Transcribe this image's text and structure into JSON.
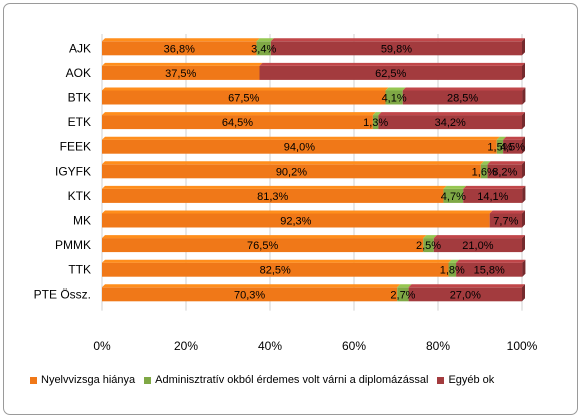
{
  "chart_data": {
    "type": "bar",
    "orientation": "horizontal",
    "stacked": "percent",
    "categories": [
      "AJK",
      "AOK",
      "BTK",
      "ETK",
      "FEEK",
      "IGYFK",
      "KTK",
      "MK",
      "PMMK",
      "TTK",
      "PTE Össz."
    ],
    "series": [
      {
        "name": "Nyelvvizsga hiánya",
        "color": "#F07818",
        "values": [
          36.8,
          37.5,
          67.5,
          64.5,
          94.0,
          90.2,
          81.3,
          92.3,
          76.5,
          82.5,
          70.3
        ],
        "labels": [
          "36,8%",
          "37,5%",
          "67,5%",
          "64,5%",
          "94,0%",
          "90,2%",
          "81,3%",
          "92,3%",
          "76,5%",
          "82,5%",
          "70,3%"
        ]
      },
      {
        "name": "Adminisztratív okból érdemes volt várni a diplomázással",
        "color": "#7FA845",
        "values": [
          3.4,
          0,
          4.1,
          1.3,
          1.5,
          1.6,
          4.7,
          0,
          2.5,
          1.8,
          2.7
        ],
        "labels": [
          "3,4%",
          "",
          "4,1%",
          "1,3%",
          "1,5%",
          "1,6%",
          "4,7%",
          "",
          "2,5%",
          "1,8%",
          "2,7%"
        ]
      },
      {
        "name": "Egyéb ok",
        "color": "#A33B3E",
        "values": [
          59.8,
          62.5,
          28.5,
          34.2,
          4.5,
          8.2,
          14.1,
          7.7,
          21.0,
          15.8,
          27.0
        ],
        "labels": [
          "59,8%",
          "62,5%",
          "28,5%",
          "34,2%",
          "4,5%",
          "8,2%",
          "14,1%",
          "7,7%",
          "21,0%",
          "15,8%",
          "27,0%"
        ]
      }
    ],
    "xlim": [
      0,
      100
    ],
    "xticks": [
      "0%",
      "20%",
      "40%",
      "60%",
      "80%",
      "100%"
    ],
    "grid": true,
    "legend_position": "bottom"
  }
}
